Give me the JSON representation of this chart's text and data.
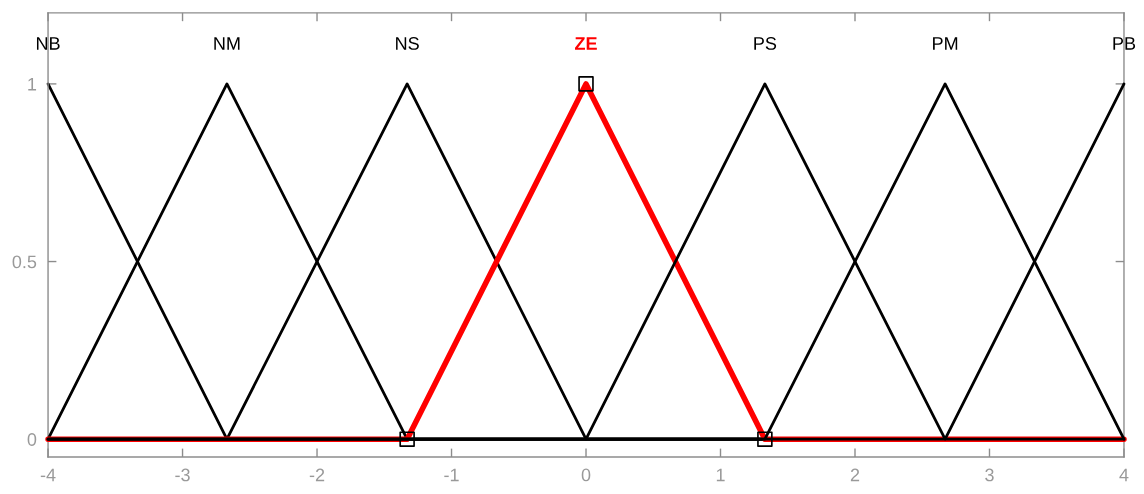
{
  "chart_data": {
    "type": "line",
    "xlim": [
      -4,
      4
    ],
    "ylim": [
      -0.05,
      1.2
    ],
    "xticks": [
      -4,
      -3,
      -2,
      -1,
      0,
      1,
      2,
      3,
      4
    ],
    "yticks": [
      0,
      0.5,
      1
    ],
    "series": [
      {
        "name": "NB",
        "color": "#000000",
        "x": [
          -4,
          -2.67,
          4
        ],
        "values": [
          1,
          0,
          0
        ]
      },
      {
        "name": "NM",
        "color": "#000000",
        "x": [
          -4,
          -2.67,
          -1.33,
          4
        ],
        "values": [
          0,
          1,
          0,
          0
        ]
      },
      {
        "name": "NS",
        "color": "#000000",
        "x": [
          -4,
          -2.67,
          -1.33,
          0,
          4
        ],
        "values": [
          0,
          0,
          1,
          0,
          0
        ]
      },
      {
        "name": "ZE",
        "color": "#ff0000",
        "x": [
          -4,
          -1.33,
          0,
          1.33,
          4
        ],
        "values": [
          0,
          0,
          1,
          0,
          0
        ]
      },
      {
        "name": "PS",
        "color": "#000000",
        "x": [
          -4,
          0,
          1.33,
          2.67,
          4
        ],
        "values": [
          0,
          0,
          1,
          0,
          0
        ]
      },
      {
        "name": "PM",
        "color": "#000000",
        "x": [
          -4,
          1.33,
          2.67,
          4
        ],
        "values": [
          0,
          0,
          1,
          0
        ]
      },
      {
        "name": "PB",
        "color": "#000000",
        "x": [
          -4,
          2.67,
          4
        ],
        "values": [
          0,
          0,
          1
        ]
      },
      {
        "type": "scatter",
        "marker": "square",
        "color": "#000000",
        "x": [
          -1.33,
          0,
          1.33
        ],
        "values": [
          0,
          1,
          0
        ]
      }
    ]
  }
}
